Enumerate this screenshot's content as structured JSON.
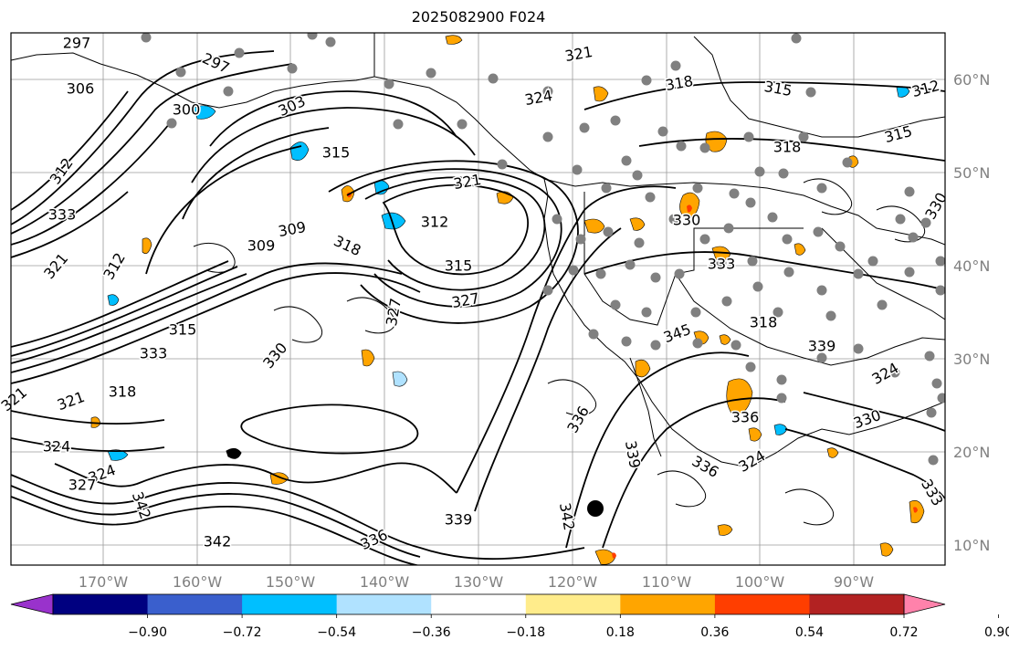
{
  "title": "2025082900 F024",
  "lon_labels": [
    "170°W",
    "160°W",
    "150°W",
    "140°W",
    "130°W",
    "120°W",
    "110°W",
    "100°W",
    "90°W"
  ],
  "lat_labels": [
    "60°N",
    "50°N",
    "40°N",
    "30°N",
    "20°N",
    "10°N"
  ],
  "colorbar": {
    "tick_labels": [
      "−0.90",
      "−0.72",
      "−0.54",
      "−0.36",
      "−0.18",
      "0.18",
      "0.36",
      "0.54",
      "0.72",
      "0.90"
    ],
    "colors": [
      "#9932cc",
      "#000080",
      "#3a5fcd",
      "#00bfff",
      "#b0e2ff",
      "#ffffff",
      "#ffec8b",
      "#ffa500",
      "#ff3e00",
      "#b22222",
      "#ff82ab"
    ]
  },
  "contour_labels": [
    {
      "text": "297"
    },
    {
      "text": "297"
    },
    {
      "text": "306"
    },
    {
      "text": "300"
    },
    {
      "text": "303"
    },
    {
      "text": "312"
    },
    {
      "text": "333"
    },
    {
      "text": "315"
    },
    {
      "text": "309"
    },
    {
      "text": "312"
    },
    {
      "text": "321"
    },
    {
      "text": "318"
    },
    {
      "text": "312"
    },
    {
      "text": "315"
    },
    {
      "text": "321"
    },
    {
      "text": "327"
    },
    {
      "text": "324"
    },
    {
      "text": "321"
    },
    {
      "text": "318"
    },
    {
      "text": "315"
    },
    {
      "text": "330"
    },
    {
      "text": "333"
    },
    {
      "text": "327"
    },
    {
      "text": "330"
    },
    {
      "text": "321"
    },
    {
      "text": "318"
    },
    {
      "text": "324"
    },
    {
      "text": "324"
    },
    {
      "text": "327"
    },
    {
      "text": "342"
    },
    {
      "text": "342"
    },
    {
      "text": "336"
    },
    {
      "text": "339"
    },
    {
      "text": "339"
    },
    {
      "text": "342"
    },
    {
      "text": "336"
    },
    {
      "text": "336"
    },
    {
      "text": "321"
    },
    {
      "text": "318"
    },
    {
      "text": "315"
    },
    {
      "text": "312"
    },
    {
      "text": "318"
    },
    {
      "text": "324"
    },
    {
      "text": "324"
    },
    {
      "text": "330"
    },
    {
      "text": "336"
    },
    {
      "text": "345"
    },
    {
      "text": "339"
    },
    {
      "text": "333"
    },
    {
      "text": "330"
    },
    {
      "text": "309"
    },
    {
      "text": "315"
    },
    {
      "text": "333"
    }
  ]
}
